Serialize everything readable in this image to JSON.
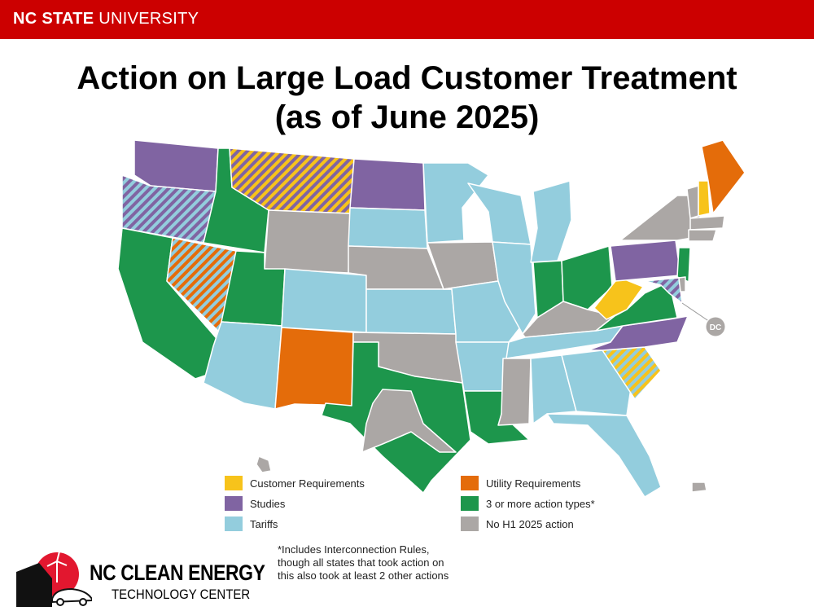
{
  "header": {
    "brand_bold": "NC STATE",
    "brand_rest": " UNIVERSITY"
  },
  "title": {
    "line1": "Action on Large Load Customer Treatment",
    "line2": "(as of June 2025)"
  },
  "legend": [
    {
      "label": "Customer Requirements",
      "color": "#f7c31b"
    },
    {
      "label": "Studies",
      "color": "#8064a2"
    },
    {
      "label": "Tariffs",
      "color": "#93cddd"
    },
    {
      "label": "Utility Requirements",
      "color": "#e46c0a"
    },
    {
      "label": "3 or more action types*",
      "color": "#1d964c"
    },
    {
      "label": "No H1 2025 action",
      "color": "#aba7a5"
    }
  ],
  "state_status": {
    "WA": [
      1
    ],
    "OR": [
      1,
      2
    ],
    "CA": [
      4
    ],
    "NV": [
      3,
      2
    ],
    "ID": [
      4
    ],
    "MT": [
      0,
      1
    ],
    "WY": [
      5
    ],
    "UT": [
      4
    ],
    "AZ": [
      2
    ],
    "CO": [
      2
    ],
    "NM": [
      3
    ],
    "ND": [
      1
    ],
    "SD": [
      2
    ],
    "NE": [
      5
    ],
    "KS": [
      2
    ],
    "OK": [
      5
    ],
    "TX": [
      4
    ],
    "MN": [
      2
    ],
    "IA": [
      5
    ],
    "MO": [
      2
    ],
    "AR": [
      2
    ],
    "LA": [
      4
    ],
    "WI": [
      2
    ],
    "IL": [
      2
    ],
    "MI": [
      2
    ],
    "IN": [
      4
    ],
    "OH": [
      4
    ],
    "KY": [
      5
    ],
    "TN": [
      2
    ],
    "MS": [
      5
    ],
    "AL": [
      2
    ],
    "GA": [
      2
    ],
    "FL": [
      2
    ],
    "SC": [
      0,
      2
    ],
    "NC": [
      1
    ],
    "VA": [
      4
    ],
    "WV": [
      0
    ],
    "PA": [
      1
    ],
    "NY": [
      5
    ],
    "NJ": [
      4
    ],
    "MD": [
      1,
      2
    ],
    "DE": [
      5
    ],
    "VT": [
      5
    ],
    "NH": [
      0
    ],
    "ME": [
      3
    ],
    "MA": [
      5
    ],
    "CT": [
      5
    ],
    "AK": [
      5
    ],
    "HI": [
      5
    ],
    "PR": [
      5
    ],
    "DC": [
      5
    ]
  },
  "dc_label": "DC",
  "footnote": [
    "*Includes Interconnection Rules,",
    "though all states that took action on",
    "this also took at least 2 other actions"
  ],
  "logo": {
    "line1": "NC CLEAN ENERGY",
    "line2": "TECHNOLOGY CENTER"
  }
}
